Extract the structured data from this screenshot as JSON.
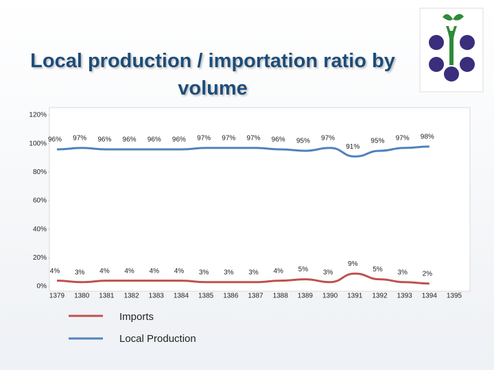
{
  "chart_data": {
    "type": "line",
    "title": "Local production / importation ratio by volume",
    "categories": [
      "1379",
      "1380",
      "1381",
      "1382",
      "1383",
      "1384",
      "1385",
      "1386",
      "1387",
      "1388",
      "1389",
      "1390",
      "1391",
      "1392",
      "1393",
      "1394",
      "1395"
    ],
    "series": [
      {
        "name": "Imports",
        "color": "#c0504d",
        "values": [
          4,
          3,
          4,
          4,
          4,
          4,
          3,
          3,
          3,
          4,
          5,
          3,
          9,
          5,
          3,
          2,
          null
        ],
        "value_labels": [
          "4%",
          "3%",
          "4%",
          "4%",
          "4%",
          "4%",
          "3%",
          "3%",
          "3%",
          "4%",
          "5%",
          "3%",
          "9%",
          "5%",
          "3%",
          "2%",
          null
        ]
      },
      {
        "name": "Local Production",
        "color": "#4f81bd",
        "values": [
          96,
          97,
          96,
          96,
          96,
          96,
          97,
          97,
          97,
          96,
          95,
          97,
          91,
          95,
          97,
          98,
          null
        ],
        "value_labels": [
          "96%",
          "97%",
          "96%",
          "96%",
          "96%",
          "96%",
          "97%",
          "97%",
          "97%",
          "96%",
          "95%",
          "97%",
          "91%",
          "95%",
          "97%",
          "98%",
          null
        ]
      }
    ],
    "ylim": [
      0,
      120
    ],
    "yticks": [
      {
        "value": 0,
        "label": "0%"
      },
      {
        "value": 20,
        "label": "20%"
      },
      {
        "value": 40,
        "label": "40%"
      },
      {
        "value": 60,
        "label": "60%"
      },
      {
        "value": 80,
        "label": "80%"
      },
      {
        "value": 100,
        "label": "100%"
      },
      {
        "value": 120,
        "label": "120%"
      }
    ],
    "legend": "bottom-left"
  }
}
